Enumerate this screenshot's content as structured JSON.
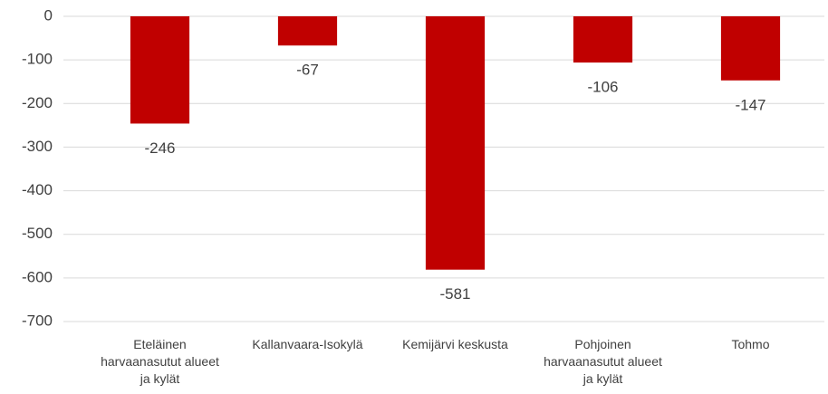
{
  "chart_data": {
    "type": "bar",
    "categories": [
      "Eteläinen harvaanasutut alueet ja kylät",
      "Kallanvaara-Isokylä",
      "Kemijärvi keskusta",
      "Pohjoinen harvaanasutut alueet ja kylät",
      "Tohmo"
    ],
    "values": [
      -246,
      -67,
      -581,
      -106,
      -147
    ],
    "color": "#c00000",
    "ylim": [
      -700,
      0
    ],
    "yticks": [
      0,
      -100,
      -200,
      -300,
      -400,
      -500,
      -600,
      -700
    ],
    "grid": true
  }
}
